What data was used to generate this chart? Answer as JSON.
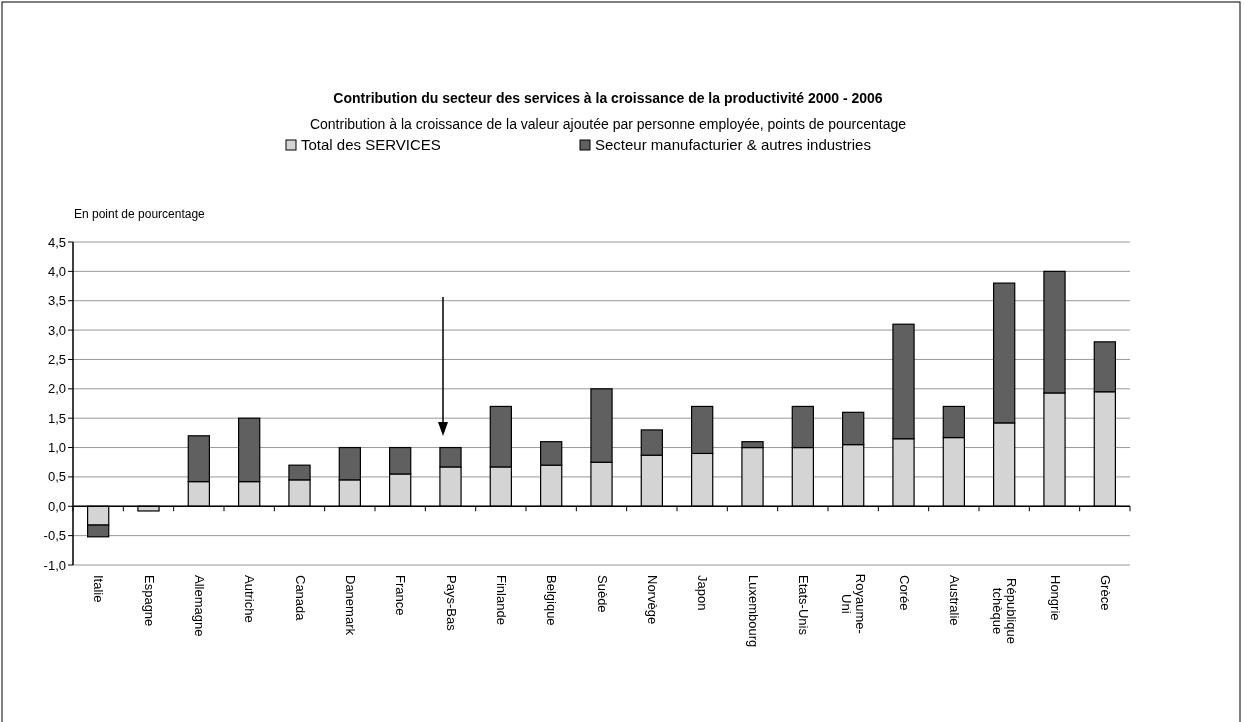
{
  "chart_data": {
    "type": "bar",
    "title": "Contribution du secteur des services à la croissance de la productivité 2000 - 2006",
    "subtitle": "Contribution à la croissance de la valeur ajoutée par personne employée, points de pourcentage",
    "ylabel": "En point de pourcentage",
    "categories": [
      "Italie",
      "Espagne",
      "Allemagne",
      "Autriche",
      "Canada",
      "Danemark",
      "France",
      "Pays-Bas",
      "Finlande",
      "Belgique",
      "Suède",
      "Norvège",
      "Japon",
      "Luxembourg",
      "Etats-Unis",
      "Royaume-Uni",
      "Corée",
      "Australie",
      "République tchèque",
      "Hongrie",
      "Grèce"
    ],
    "series": [
      {
        "name": "Total des SERVICES",
        "color": "#d4d4d4",
        "values": [
          -0.32,
          -0.08,
          0.42,
          0.42,
          0.45,
          0.45,
          0.55,
          0.67,
          0.67,
          0.7,
          0.75,
          0.87,
          0.9,
          1.0,
          1.0,
          1.05,
          1.15,
          1.17,
          1.42,
          1.93,
          1.95
        ]
      },
      {
        "name": "Secteur manufacturier & autres industries",
        "color": "#606060",
        "values": [
          -0.2,
          0,
          0.78,
          1.08,
          0.25,
          0.55,
          0.45,
          0.33,
          1.03,
          0.4,
          1.25,
          0.43,
          0.8,
          0.1,
          0.7,
          0.55,
          1.95,
          0.53,
          2.38,
          2.07,
          0.85
        ]
      }
    ],
    "stacked": true,
    "ylim": [
      -1.0,
      4.5
    ],
    "yticks": [
      {
        "value": -1.0,
        "label": "-1,0"
      },
      {
        "value": -0.5,
        "label": "-0,5"
      },
      {
        "value": 0,
        "label": "0,0"
      },
      {
        "value": 0.5,
        "label": "0,5"
      },
      {
        "value": 1.0,
        "label": "1,0"
      },
      {
        "value": 1.5,
        "label": "1,5"
      },
      {
        "value": 2.0,
        "label": "2,0"
      },
      {
        "value": 2.5,
        "label": "2,5"
      },
      {
        "value": 3.0,
        "label": "3,0"
      },
      {
        "value": 3.5,
        "label": "3,5"
      },
      {
        "value": 4.0,
        "label": "4,0"
      },
      {
        "value": 4.5,
        "label": "4,5"
      }
    ],
    "grid": "y",
    "legend": "top"
  }
}
